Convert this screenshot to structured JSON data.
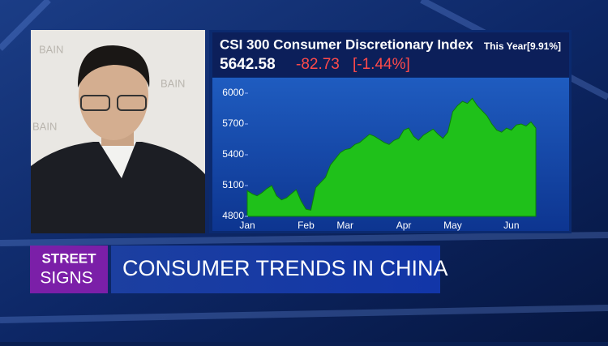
{
  "chart_data": {
    "type": "area",
    "title": "CSI 300 Consumer Discretionary Index",
    "categories": [
      "Jan",
      null,
      null,
      null,
      null,
      null,
      null,
      null,
      null,
      null,
      null,
      null,
      "Feb",
      null,
      null,
      null,
      null,
      null,
      null,
      null,
      "Mar",
      null,
      null,
      null,
      null,
      null,
      null,
      null,
      null,
      null,
      null,
      null,
      "Apr",
      null,
      null,
      null,
      null,
      null,
      null,
      null,
      null,
      null,
      "May",
      null,
      null,
      null,
      null,
      null,
      null,
      null,
      null,
      null,
      null,
      null,
      "Jun",
      null,
      null,
      null,
      null,
      null
    ],
    "values": [
      5050,
      5020,
      5000,
      5030,
      5070,
      5100,
      5000,
      4960,
      4980,
      5020,
      5060,
      4950,
      4870,
      4860,
      5080,
      5130,
      5180,
      5300,
      5360,
      5420,
      5450,
      5460,
      5500,
      5520,
      5560,
      5600,
      5580,
      5550,
      5520,
      5500,
      5540,
      5560,
      5640,
      5660,
      5580,
      5540,
      5590,
      5620,
      5650,
      5600,
      5560,
      5620,
      5820,
      5880,
      5920,
      5900,
      5950,
      5880,
      5830,
      5780,
      5700,
      5640,
      5620,
      5660,
      5640,
      5690,
      5700,
      5680,
      5720,
      5660
    ],
    "color": "#1fc11a",
    "line_color": "#0b7d0a",
    "ylim": [
      4800,
      6150
    ],
    "yticks": [
      4800,
      5100,
      5400,
      5700,
      6000
    ]
  },
  "quote": {
    "period": "This Year[9.91%]",
    "last": "5642.58",
    "change": "-82.73",
    "change_pct": "[-1.44%]"
  },
  "banner": {
    "show_top": "STREET",
    "show_bottom": "SIGNS",
    "headline": "CONSUMER TRENDS IN CHINA"
  },
  "backdrop": {
    "logos": [
      "BAIN",
      "BAIN",
      "BAIN"
    ]
  }
}
